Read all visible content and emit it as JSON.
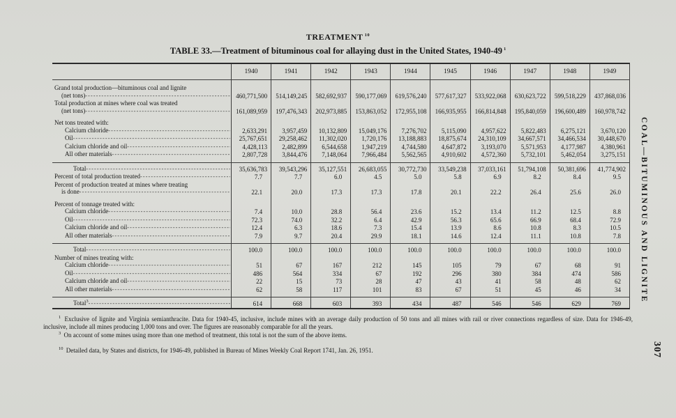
{
  "page": {
    "running_head": "TREATMENT",
    "running_head_note": "10",
    "side_label": "COAL—BITUMINOUS AND LIGNITE",
    "page_number": "307"
  },
  "table": {
    "title": "TABLE 33.—Treatment of bituminous coal for allaying dust in the United States, 1940-49",
    "title_note": "1",
    "years": [
      "1940",
      "1941",
      "1942",
      "1943",
      "1944",
      "1945",
      "1946",
      "1947",
      "1948",
      "1949"
    ],
    "rows": [
      {
        "label": "Grand total production—bituminous coal and lignite",
        "label2": "(net tons)",
        "type": "data",
        "gap": true,
        "values": [
          "460,771,500",
          "514,149,245",
          "582,692,937",
          "590,177,069",
          "619,576,240",
          "577,617,327",
          "533,922,068",
          "630,623,722",
          "599,518,229",
          "437,868,036"
        ]
      },
      {
        "label": "Total production at mines where coal was treated",
        "label2": "(net tons)",
        "type": "data",
        "values": [
          "161,089,959",
          "197,476,343",
          "202,973,885",
          "153,863,052",
          "172,955,108",
          "166,935,955",
          "166,814,848",
          "195,840,059",
          "196,600,489",
          "160,978,742"
        ]
      },
      {
        "label": "Net tons treated with:",
        "type": "section",
        "gap": true
      },
      {
        "label": "Calcium chloride",
        "type": "data",
        "indent": 1,
        "values": [
          "2,633,291",
          "3,957,459",
          "10,132,809",
          "15,049,176",
          "7,276,702",
          "5,115,090",
          "4,957,622",
          "5,822,483",
          "6,275,121",
          "3,670,120"
        ]
      },
      {
        "label": "Oil",
        "type": "data",
        "indent": 1,
        "values": [
          "25,767,651",
          "29,258,462",
          "11,302,020",
          "1,720,176",
          "13,188,883",
          "18,875,674",
          "24,310,109",
          "34,667,571",
          "34,466,534",
          "30,448,670"
        ]
      },
      {
        "label": "Calcium chloride and oil",
        "type": "data",
        "indent": 1,
        "values": [
          "4,428,113",
          "2,482,899",
          "6,544,658",
          "1,947,219",
          "4,744,580",
          "4,647,872",
          "3,193,070",
          "5,571,953",
          "4,177,987",
          "4,380,961"
        ]
      },
      {
        "label": "All other materials",
        "type": "data",
        "indent": 1,
        "padb": true,
        "values": [
          "2,807,728",
          "3,844,476",
          "7,148,064",
          "7,966,484",
          "5,562,565",
          "4,910,602",
          "4,572,360",
          "5,732,101",
          "5,462,054",
          "3,275,151"
        ]
      },
      {
        "label": "Total",
        "type": "total",
        "indent": 2,
        "rule": true,
        "values": [
          "35,636,783",
          "39,543,296",
          "35,127,551",
          "26,683,055",
          "30,772,730",
          "33,549,238",
          "37,033,161",
          "51,794,108",
          "50,381,696",
          "41,774,902"
        ]
      },
      {
        "label": "Percent of total production treated",
        "type": "data",
        "mid": true,
        "values": [
          "7.7",
          "7.7",
          "6.0",
          "4.5",
          "5.0",
          "5.8",
          "6.9",
          "8.2",
          "8.4",
          "9.5"
        ]
      },
      {
        "label": "Percent of production treated at mines where treating",
        "label2": "is done",
        "type": "data",
        "mid": true,
        "values": [
          "22.1",
          "20.0",
          "17.3",
          "17.3",
          "17.8",
          "20.1",
          "22.2",
          "26.4",
          "25.6",
          "26.0"
        ]
      },
      {
        "label": "Percent of tonnage treated with:",
        "type": "section",
        "gap": true
      },
      {
        "label": "Calcium chloride",
        "type": "data",
        "indent": 1,
        "mid": true,
        "values": [
          "7.4",
          "10.0",
          "28.8",
          "56.4",
          "23.6",
          "15.2",
          "13.4",
          "11.2",
          "12.5",
          "8.8"
        ]
      },
      {
        "label": "Oil",
        "type": "data",
        "indent": 1,
        "mid": true,
        "values": [
          "72.3",
          "74.0",
          "32.2",
          "6.4",
          "42.9",
          "56.3",
          "65.6",
          "66.9",
          "68.4",
          "72.9"
        ]
      },
      {
        "label": "Calcium chloride and oil",
        "type": "data",
        "indent": 1,
        "mid": true,
        "values": [
          "12.4",
          "6.3",
          "18.6",
          "7.3",
          "15.4",
          "13.9",
          "8.6",
          "10.8",
          "8.3",
          "10.5"
        ]
      },
      {
        "label": "All other materials",
        "type": "data",
        "indent": 1,
        "mid": true,
        "padb": true,
        "values": [
          "7.9",
          "9.7",
          "20.4",
          "29.9",
          "18.1",
          "14.6",
          "12.4",
          "11.1",
          "10.8",
          "7.8"
        ]
      },
      {
        "label": "Total",
        "type": "total",
        "indent": 2,
        "rule": true,
        "mid": true,
        "values": [
          "100.0",
          "100.0",
          "100.0",
          "100.0",
          "100.0",
          "100.0",
          "100.0",
          "100.0",
          "100.0",
          "100.0"
        ]
      },
      {
        "label": "Number of mines treating with:",
        "type": "section"
      },
      {
        "label": "Calcium chloride",
        "type": "data",
        "indent": 1,
        "mid": true,
        "values": [
          "51",
          "67",
          "167",
          "212",
          "145",
          "105",
          "79",
          "67",
          "68",
          "91"
        ]
      },
      {
        "label": "Oil",
        "type": "data",
        "indent": 1,
        "mid": true,
        "values": [
          "486",
          "564",
          "334",
          "67",
          "192",
          "296",
          "380",
          "384",
          "474",
          "586"
        ]
      },
      {
        "label": "Calcium chloride and oil",
        "type": "data",
        "indent": 1,
        "mid": true,
        "values": [
          "22",
          "15",
          "73",
          "28",
          "47",
          "43",
          "41",
          "58",
          "48",
          "62"
        ]
      },
      {
        "label": "All other materials",
        "type": "data",
        "indent": 1,
        "mid": true,
        "padb": true,
        "values": [
          "62",
          "58",
          "117",
          "101",
          "83",
          "67",
          "51",
          "45",
          "46",
          "34"
        ]
      },
      {
        "label": "Total",
        "note": "3",
        "type": "total",
        "indent": 2,
        "rule": true,
        "mid": true,
        "values": [
          "614",
          "668",
          "603",
          "393",
          "434",
          "487",
          "546",
          "546",
          "629",
          "769"
        ]
      }
    ]
  },
  "footnotes": [
    {
      "marker": "1",
      "text": "Exclusive of lignite and Virginia semianthracite. Data for 1940-45, inclusive, include mines with an average daily production of 50 tons and all mines with rail or river connections regardless of size. Data for 1946-49, inclusive, include all mines producing 1,000 tons and over. The figures are reasonably comparable for all the years."
    },
    {
      "marker": "3",
      "text": "On account of some mines using more than one method of treatment, this total is not the sum of the above items."
    },
    {
      "marker": "10",
      "text": "Detailed data, by States and districts, for 1946-49, published in Bureau of Mines Weekly Coal Report 1741, Jan. 26, 1951.",
      "spaced": true
    }
  ]
}
